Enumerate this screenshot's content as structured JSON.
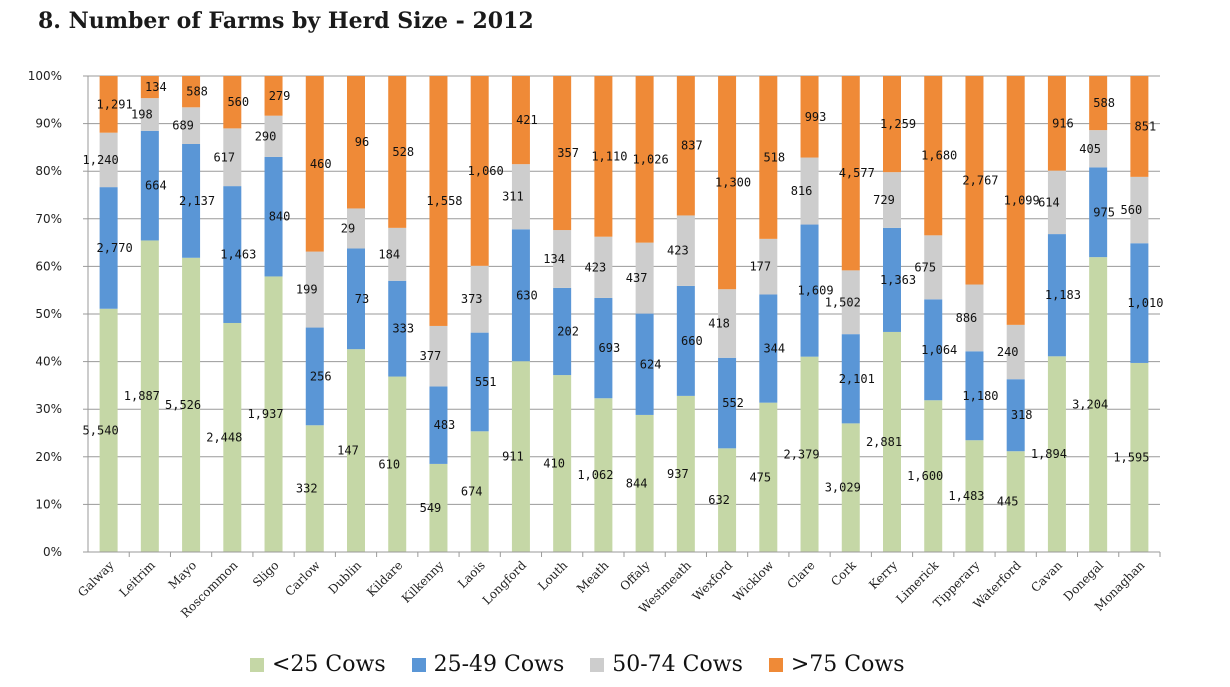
{
  "chart_data": {
    "type": "bar",
    "stacked": "percent",
    "title": "8. Number of Farms by Herd Size - 2012",
    "yticks": [
      "0%",
      "10%",
      "20%",
      "30%",
      "40%",
      "50%",
      "60%",
      "70%",
      "80%",
      "90%",
      "100%"
    ],
    "ylim": [
      0,
      100
    ],
    "legend_position": "bottom",
    "categories": [
      "Galway",
      "Leitrim",
      "Mayo",
      "Roscommon",
      "Sligo",
      "Carlow",
      "Dublin",
      "Kildare",
      "Kilkenny",
      "Laois",
      "Longford",
      "Louth",
      "Meath",
      "Offaly",
      "Westmeath",
      "Wexford",
      "Wicklow",
      "Clare",
      "Cork",
      "Kerry",
      "Limerick",
      "Tipperary",
      "Waterford",
      "Cavan",
      "Donegal",
      "Monaghan"
    ],
    "series": [
      {
        "name": "<25 Cows",
        "color": "#c5d7a6",
        "values": [
          5540,
          1887,
          5526,
          2448,
          1937,
          332,
          147,
          610,
          549,
          674,
          911,
          410,
          1062,
          844,
          937,
          632,
          475,
          2379,
          3029,
          2881,
          1600,
          1483,
          445,
          1894,
          3204,
          1595
        ]
      },
      {
        "name": "25-49 Cows",
        "color": "#5a96d6",
        "values": [
          2770,
          664,
          2137,
          1463,
          840,
          256,
          73,
          333,
          483,
          551,
          630,
          202,
          693,
          624,
          660,
          552,
          344,
          1609,
          2101,
          1363,
          1064,
          1180,
          318,
          1183,
          975,
          1010
        ]
      },
      {
        "name": "50-74 Cows",
        "color": "#cdcdcd",
        "values": [
          1240,
          198,
          689,
          617,
          290,
          199,
          29,
          184,
          377,
          373,
          311,
          134,
          423,
          437,
          423,
          418,
          177,
          816,
          1502,
          729,
          675,
          886,
          240,
          614,
          405,
          560
        ]
      },
      {
        "name": ">75 Cows",
        "color": "#ef8a37",
        "values": [
          1291,
          134,
          588,
          560,
          279,
          460,
          96,
          528,
          1558,
          1060,
          421,
          357,
          1110,
          1026,
          837,
          1300,
          518,
          993,
          4577,
          1259,
          1680,
          2767,
          1099,
          916,
          588,
          851
        ]
      }
    ]
  }
}
